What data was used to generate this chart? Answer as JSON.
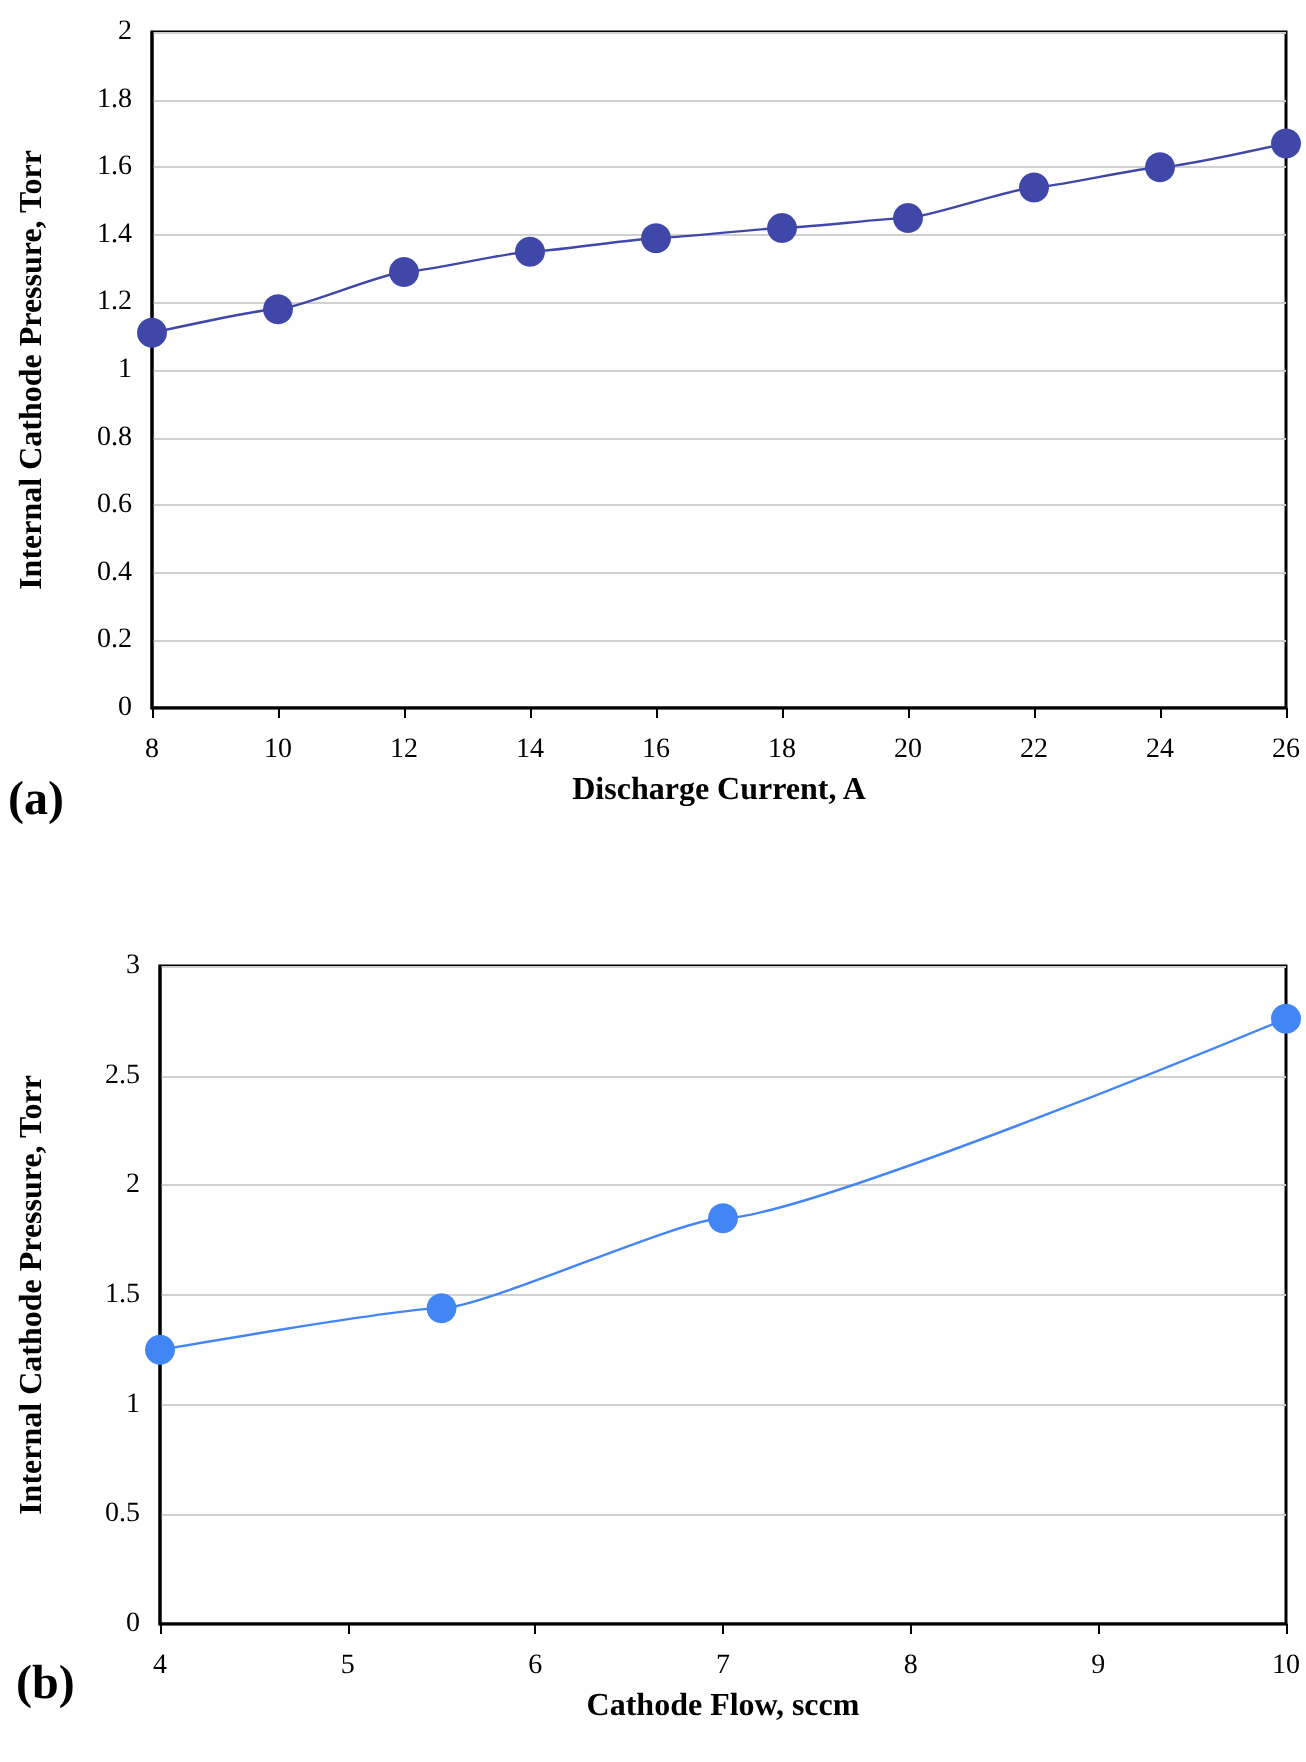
{
  "chart_data": [
    {
      "type": "line",
      "xlabel": "Discharge Current, A",
      "ylabel": "Internal Cathode Pressure, Torr",
      "annotations": [
        "(a)"
      ],
      "x": [
        8,
        10,
        12,
        14,
        16,
        18,
        20,
        22,
        24,
        26
      ],
      "series": [
        {
          "color": "#3f48a8",
          "values": [
            1.11,
            1.18,
            1.29,
            1.35,
            1.39,
            1.42,
            1.45,
            1.54,
            1.6,
            1.67
          ]
        }
      ],
      "xlim": [
        8,
        26
      ],
      "xticks": [
        8,
        10,
        12,
        14,
        16,
        18,
        20,
        22,
        24,
        26
      ],
      "ylim": [
        0,
        2
      ],
      "yticks": [
        0,
        0.2,
        0.4,
        0.6,
        0.8,
        1,
        1.2,
        1.4,
        1.6,
        1.8,
        2
      ],
      "grid": "y",
      "marker": "circle",
      "line_style": "solid"
    },
    {
      "type": "line",
      "xlabel": "Cathode Flow, sccm",
      "ylabel": "Internal Cathode Pressure, Torr",
      "annotations": [
        "(b)"
      ],
      "x": [
        4,
        5.5,
        7,
        10
      ],
      "series": [
        {
          "color": "#4285f4",
          "values": [
            1.25,
            1.44,
            1.85,
            2.76
          ]
        }
      ],
      "xlim": [
        4,
        10
      ],
      "xticks": [
        4,
        5,
        6,
        7,
        8,
        9,
        10
      ],
      "ylim": [
        0,
        3
      ],
      "yticks": [
        0,
        0.5,
        1,
        1.5,
        2,
        2.5,
        3
      ],
      "grid": "y",
      "marker": "circle",
      "line_style": "solid"
    }
  ]
}
